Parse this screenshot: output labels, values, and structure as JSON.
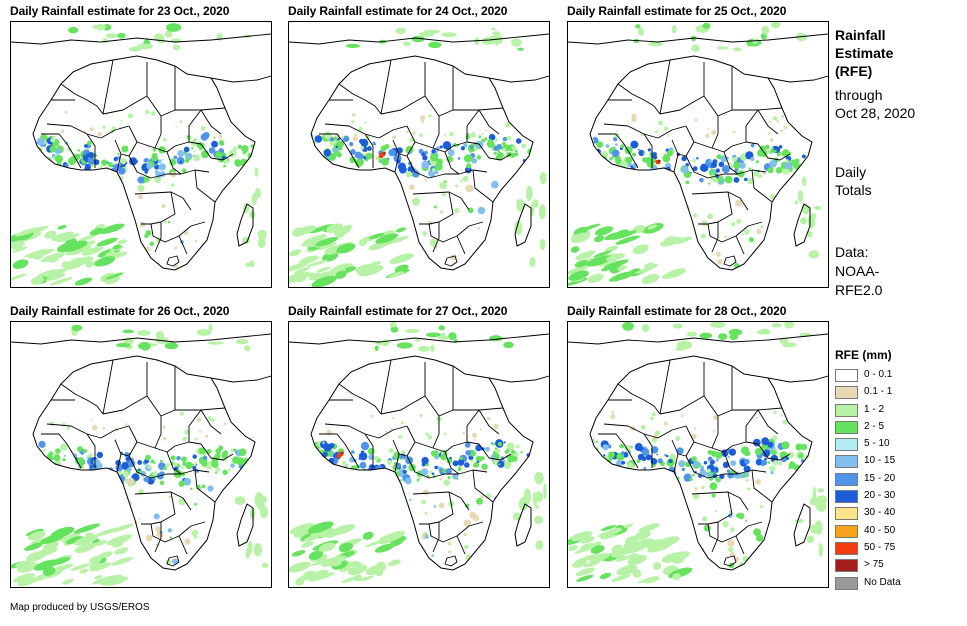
{
  "panels": [
    {
      "title": "Daily Rainfall estimate for 23 Oct., 2020"
    },
    {
      "title": "Daily Rainfall estimate for 24 Oct., 2020"
    },
    {
      "title": "Daily Rainfall estimate for 25 Oct., 2020"
    },
    {
      "title": "Daily Rainfall estimate for 26 Oct., 2020"
    },
    {
      "title": "Daily Rainfall estimate for 27 Oct., 2020"
    },
    {
      "title": "Daily Rainfall estimate for 28 Oct., 2020"
    }
  ],
  "side": {
    "title_line1": "Rainfall",
    "title_line2": "Estimate",
    "title_line3": "(RFE)",
    "through_line1": "through",
    "through_line2": "Oct 28, 2020",
    "totals_line1": "Daily",
    "totals_line2": "Totals",
    "data_line1": "Data:",
    "data_line2": "NOAA-",
    "data_line3": "RFE2.0"
  },
  "legend": {
    "title": "RFE (mm)",
    "items": [
      {
        "label": "0 - 0.1",
        "color": "#ffffff"
      },
      {
        "label": "0.1 - 1",
        "color": "#e9d8b4"
      },
      {
        "label": "1 - 2",
        "color": "#b8f2a6"
      },
      {
        "label": "2 - 5",
        "color": "#66e35e"
      },
      {
        "label": "5 - 10",
        "color": "#b4ecf7"
      },
      {
        "label": "10 - 15",
        "color": "#82bff0"
      },
      {
        "label": "15 - 20",
        "color": "#4f94e8"
      },
      {
        "label": "20 - 30",
        "color": "#1c5ed9"
      },
      {
        "label": "30 - 40",
        "color": "#fde68a"
      },
      {
        "label": "40 - 50",
        "color": "#f5a31a"
      },
      {
        "label": "50 - 75",
        "color": "#f03c0f"
      },
      {
        "label": "> 75",
        "color": "#a31d1d"
      },
      {
        "label": "No Data",
        "color": "#999999"
      }
    ]
  },
  "footer": {
    "credit": "Map produced by USGS/EROS"
  }
}
